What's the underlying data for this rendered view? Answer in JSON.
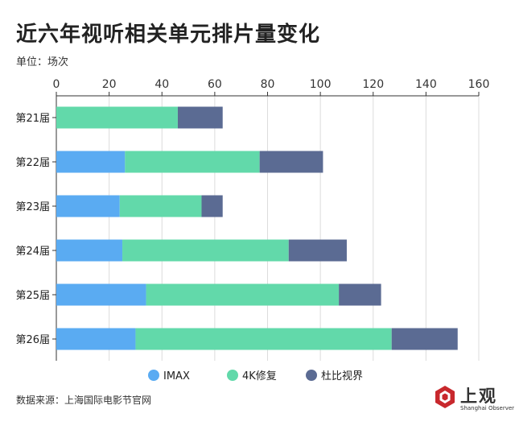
{
  "header": {
    "title": "近六年视听相关单元排片量变化",
    "unit": "单位：场次"
  },
  "footer": {
    "source": "数据来源：上海国际电影节官网"
  },
  "logo": {
    "text": "上观",
    "subtext": "Shanghai Observer"
  },
  "colors": {
    "IMAX": "#5aabf2",
    "4K修复": "#62d9aa",
    "杜比视界": "#5b6b93"
  },
  "chart_data": {
    "type": "bar",
    "orientation": "horizontal",
    "stacked": true,
    "categories": [
      "第21届",
      "第22届",
      "第23届",
      "第24届",
      "第25届",
      "第26届"
    ],
    "series": [
      {
        "name": "IMAX",
        "values": [
          0,
          26,
          24,
          25,
          34,
          30
        ]
      },
      {
        "name": "4K修复",
        "values": [
          46,
          51,
          31,
          63,
          73,
          97
        ]
      },
      {
        "name": "杜比视界",
        "values": [
          17,
          24,
          8,
          22,
          16,
          25
        ]
      }
    ],
    "xticks": [
      0,
      20,
      40,
      60,
      80,
      100,
      120,
      140,
      160
    ],
    "xlim": [
      0,
      160
    ],
    "axis_position": "top",
    "grid": true,
    "legend_position": "bottom-center"
  }
}
